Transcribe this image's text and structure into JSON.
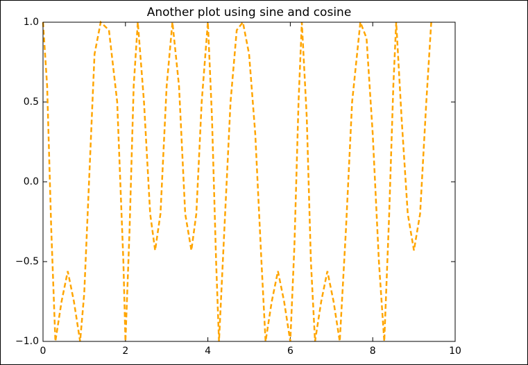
{
  "chart_data": {
    "type": "line",
    "title": "Another plot using sine and cosine",
    "x": [
      0,
      0.1,
      0.2,
      0.3,
      0.45,
      0.6,
      0.75,
      0.9,
      1.0,
      1.1,
      1.25,
      1.4,
      1.6,
      1.8,
      1.95,
      2.0,
      2.1,
      2.2,
      2.3,
      2.45,
      2.6,
      2.72,
      2.85,
      3.0,
      3.14,
      3.3,
      3.45,
      3.6,
      3.72,
      3.85,
      4.0,
      4.1,
      4.2,
      4.27,
      4.4,
      4.55,
      4.7,
      4.85,
      5.0,
      5.15,
      5.3,
      5.4,
      5.55,
      5.7,
      5.85,
      6.0,
      6.1,
      6.2,
      6.28,
      6.4,
      6.5,
      6.6,
      6.75,
      6.9,
      7.05,
      7.2,
      7.35,
      7.5,
      7.7,
      7.85,
      8.0,
      8.15,
      8.28,
      8.4,
      8.5,
      8.57,
      8.7,
      8.85,
      9.0,
      9.15,
      9.3,
      9.42
    ],
    "series": [
      {
        "color": "#ffa500",
        "values": [
          1.0,
          0.6,
          -0.3,
          -1.0,
          -0.75,
          -0.56,
          -0.75,
          -1.0,
          -0.7,
          -0.1,
          0.8,
          1.0,
          0.95,
          0.5,
          -0.5,
          -1.0,
          -0.3,
          0.6,
          1.0,
          0.5,
          -0.2,
          -0.43,
          -0.2,
          0.6,
          1.0,
          0.6,
          -0.2,
          -0.43,
          -0.2,
          0.5,
          1.0,
          0.4,
          -0.5,
          -1.0,
          -0.3,
          0.5,
          0.95,
          1.0,
          0.8,
          0.3,
          -0.5,
          -1.0,
          -0.75,
          -0.56,
          -0.75,
          -1.0,
          -0.4,
          0.5,
          1.0,
          0.4,
          -0.5,
          -1.0,
          -0.75,
          -0.56,
          -0.75,
          -1.0,
          -0.3,
          0.5,
          1.0,
          0.9,
          0.3,
          -0.5,
          -1.0,
          -0.2,
          0.6,
          1.0,
          0.4,
          -0.2,
          -0.43,
          -0.2,
          0.5,
          1.0
        ]
      }
    ],
    "xlim": [
      0,
      10
    ],
    "xticks": [
      0,
      2,
      4,
      6,
      8,
      10
    ],
    "ylim": [
      -1,
      1
    ],
    "yticks": [
      {
        "value": -1,
        "label": "−1.0"
      },
      {
        "value": -0.5,
        "label": "−0.5"
      },
      {
        "value": 0,
        "label": "0.0"
      },
      {
        "value": 0.5,
        "label": "0.5"
      },
      {
        "value": 1,
        "label": "1.0"
      }
    ],
    "line_style": "dashed"
  }
}
